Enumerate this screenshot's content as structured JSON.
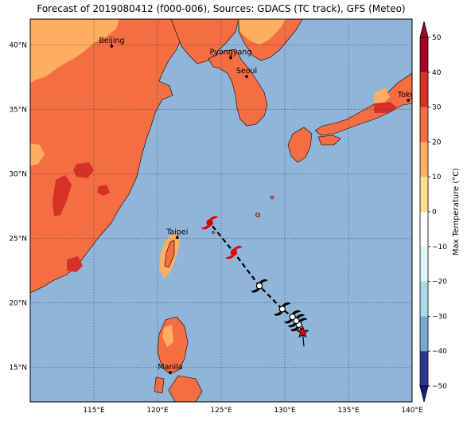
{
  "title": "Forecast of 2019080412 (f000-006), Sources: GDACS (TC track), GFS (Meteo)",
  "colors": {
    "ocean": "#91b5d9",
    "land_warm": "#f46d43",
    "land_cool": "#fdae61",
    "land_hot": "#d73027",
    "track": "#000000",
    "storm_marker": "#e00000"
  },
  "map": {
    "lon_range": [
      110,
      140
    ],
    "lat_range": [
      12.3,
      42
    ],
    "lon_ticks": [
      {
        "value": 115,
        "label": "115°E"
      },
      {
        "value": 120,
        "label": "120°E"
      },
      {
        "value": 125,
        "label": "125°E"
      },
      {
        "value": 130,
        "label": "130°E"
      },
      {
        "value": 135,
        "label": "135°E"
      },
      {
        "value": 140,
        "label": "140°E"
      }
    ],
    "lat_ticks": [
      {
        "value": 15,
        "label": "15°N"
      },
      {
        "value": 20,
        "label": "20°N"
      },
      {
        "value": 25,
        "label": "25°N"
      },
      {
        "value": 30,
        "label": "30°N"
      },
      {
        "value": 35,
        "label": "35°N"
      },
      {
        "value": 40,
        "label": "40°N"
      }
    ],
    "cities": [
      {
        "name": "Beijing",
        "lon": 116.4,
        "lat": 39.9
      },
      {
        "name": "Pyongyang",
        "lon": 125.75,
        "lat": 39.0
      },
      {
        "name": "Seoul",
        "lon": 127.0,
        "lat": 37.55
      },
      {
        "name": "Tokyo",
        "lon": 139.7,
        "lat": 35.7
      },
      {
        "name": "Taipei",
        "lon": 121.55,
        "lat": 25.05
      },
      {
        "name": "Manila",
        "lon": 121.0,
        "lat": 14.6
      }
    ],
    "track": {
      "points": [
        {
          "lon": 131.4,
          "lat": 17.7
        },
        {
          "lon": 131.1,
          "lat": 18.3
        },
        {
          "lon": 130.9,
          "lat": 18.6
        },
        {
          "lon": 130.6,
          "lat": 18.9
        },
        {
          "lon": 129.8,
          "lat": 19.5
        },
        {
          "lon": 128.0,
          "lat": 21.3
        },
        {
          "lon": 126.0,
          "lat": 23.9
        },
        {
          "lon": 124.1,
          "lat": 26.2
        }
      ],
      "tail": [
        {
          "lon": 131.4,
          "lat": 17.7
        },
        {
          "lon": 131.5,
          "lat": 16.6
        }
      ],
      "current": {
        "lon": 131.4,
        "lat": 17.7
      },
      "forecast_storms": [
        {
          "lon": 126.0,
          "lat": 23.9
        },
        {
          "lon": 124.1,
          "lat": 26.2
        }
      ],
      "past_storms": [
        {
          "lon": 131.1,
          "lat": 18.3
        },
        {
          "lon": 130.9,
          "lat": 18.6
        },
        {
          "lon": 130.6,
          "lat": 18.9
        },
        {
          "lon": 129.8,
          "lat": 19.5
        },
        {
          "lon": 128.0,
          "lat": 21.3
        }
      ]
    }
  },
  "colorbar": {
    "label": "Max Temperature (°C)",
    "ticks": [
      50,
      40,
      30,
      20,
      10,
      0,
      -10,
      -20,
      -30,
      -40,
      -50
    ],
    "bands": [
      {
        "from": 40,
        "to": 50,
        "color": "#a50026"
      },
      {
        "from": 30,
        "to": 40,
        "color": "#d73027"
      },
      {
        "from": 20,
        "to": 30,
        "color": "#f46d43"
      },
      {
        "from": 10,
        "to": 20,
        "color": "#fdae61"
      },
      {
        "from": 0,
        "to": 10,
        "color": "#fee090"
      },
      {
        "from": -10,
        "to": 0,
        "color": "#ffffff"
      },
      {
        "from": -20,
        "to": -10,
        "color": "#e0f3f8"
      },
      {
        "from": -30,
        "to": -20,
        "color": "#abd9e9"
      },
      {
        "from": -40,
        "to": -30,
        "color": "#74add1"
      },
      {
        "from": -50,
        "to": -40,
        "color": "#313695"
      }
    ],
    "extend_max_color": "#a50026",
    "extend_min_color": "#1a1a80"
  }
}
